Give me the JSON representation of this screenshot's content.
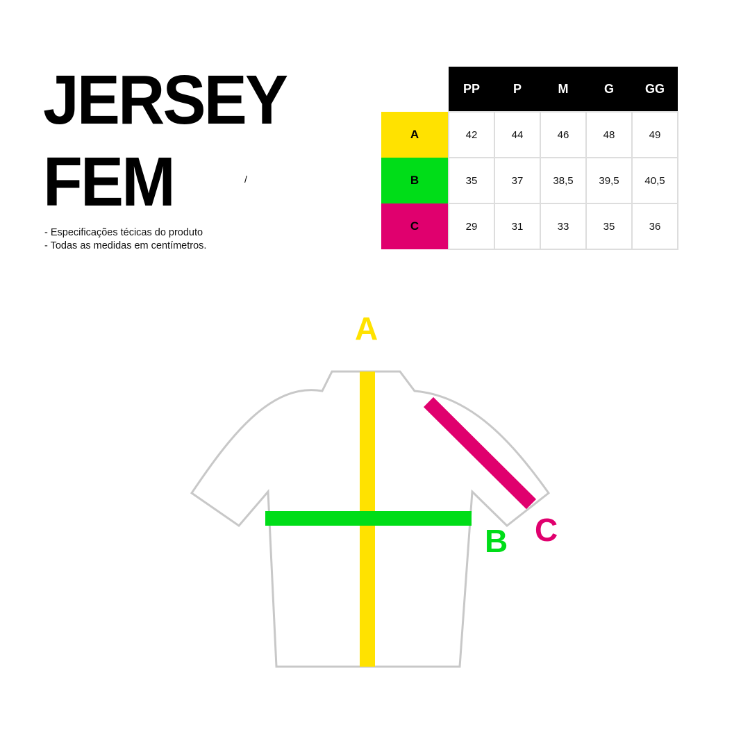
{
  "title_line1": "JERSEY",
  "title_line2": "FEM",
  "slash": "/",
  "notes": [
    "- Especificações técicas do produto",
    "- Todas as medidas em centímetros."
  ],
  "table": {
    "columns": [
      "PP",
      "P",
      "M",
      "G",
      "GG"
    ],
    "rows": [
      {
        "label": "A",
        "color": "#FFE200",
        "values": [
          "42",
          "44",
          "46",
          "48",
          "49"
        ]
      },
      {
        "label": "B",
        "color": "#00DD18",
        "values": [
          "35",
          "37",
          "38,5",
          "39,5",
          "40,5"
        ]
      },
      {
        "label": "C",
        "color": "#E0006E",
        "values": [
          "29",
          "31",
          "33",
          "35",
          "36"
        ]
      }
    ]
  },
  "diagram": {
    "label_a": "A",
    "label_b": "B",
    "label_c": "C",
    "colors": {
      "a": "#FFE200",
      "b": "#00DD18",
      "c": "#E0006E",
      "outline": "#C8C8C8"
    }
  }
}
